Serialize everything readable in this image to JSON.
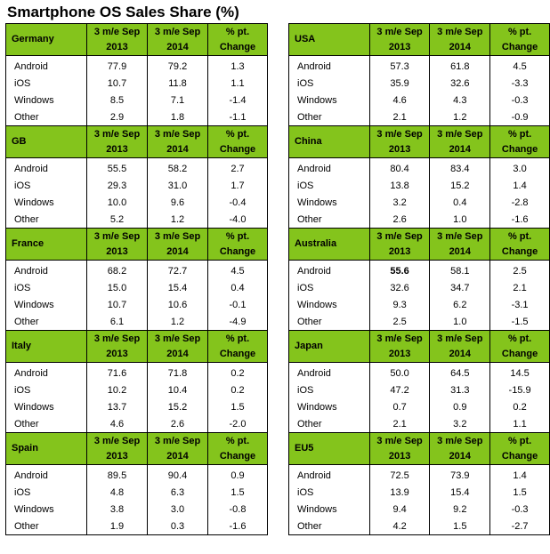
{
  "title": "Smartphone OS Sales Share (%)",
  "chart_data": {
    "type": "table",
    "columns": [
      "3 m/e Sep 2013",
      "3 m/e Sep 2014",
      "% pt. Change"
    ],
    "header_lines": [
      [
        "3 m/e Sep",
        "2013"
      ],
      [
        "3 m/e Sep",
        "2014"
      ],
      [
        "% pt.",
        "Change"
      ]
    ],
    "header_color": "#84c41c",
    "left_regions": [
      {
        "region": "Germany",
        "rows": [
          {
            "os": "Android",
            "v2013": "77.9",
            "v2014": "79.2",
            "change": "1.3"
          },
          {
            "os": "iOS",
            "v2013": "10.7",
            "v2014": "11.8",
            "change": "1.1"
          },
          {
            "os": "Windows",
            "v2013": "8.5",
            "v2014": "7.1",
            "change": "-1.4"
          },
          {
            "os": "Other",
            "v2013": "2.9",
            "v2014": "1.8",
            "change": "-1.1"
          }
        ]
      },
      {
        "region": "GB",
        "rows": [
          {
            "os": "Android",
            "v2013": "55.5",
            "v2014": "58.2",
            "change": "2.7"
          },
          {
            "os": "iOS",
            "v2013": "29.3",
            "v2014": "31.0",
            "change": "1.7"
          },
          {
            "os": "Windows",
            "v2013": "10.0",
            "v2014": "9.6",
            "change": "-0.4"
          },
          {
            "os": "Other",
            "v2013": "5.2",
            "v2014": "1.2",
            "change": "-4.0"
          }
        ]
      },
      {
        "region": "France",
        "rows": [
          {
            "os": "Android",
            "v2013": "68.2",
            "v2014": "72.7",
            "change": "4.5"
          },
          {
            "os": "iOS",
            "v2013": "15.0",
            "v2014": "15.4",
            "change": "0.4"
          },
          {
            "os": "Windows",
            "v2013": "10.7",
            "v2014": "10.6",
            "change": "-0.1"
          },
          {
            "os": "Other",
            "v2013": "6.1",
            "v2014": "1.2",
            "change": "-4.9"
          }
        ]
      },
      {
        "region": "Italy",
        "rows": [
          {
            "os": "Android",
            "v2013": "71.6",
            "v2014": "71.8",
            "change": "0.2"
          },
          {
            "os": "iOS",
            "v2013": "10.2",
            "v2014": "10.4",
            "change": "0.2"
          },
          {
            "os": "Windows",
            "v2013": "13.7",
            "v2014": "15.2",
            "change": "1.5"
          },
          {
            "os": "Other",
            "v2013": "4.6",
            "v2014": "2.6",
            "change": "-2.0"
          }
        ]
      },
      {
        "region": "Spain",
        "rows": [
          {
            "os": "Android",
            "v2013": "89.5",
            "v2014": "90.4",
            "change": "0.9"
          },
          {
            "os": "iOS",
            "v2013": "4.8",
            "v2014": "6.3",
            "change": "1.5"
          },
          {
            "os": "Windows",
            "v2013": "3.8",
            "v2014": "3.0",
            "change": "-0.8"
          },
          {
            "os": "Other",
            "v2013": "1.9",
            "v2014": "0.3",
            "change": "-1.6"
          }
        ]
      }
    ],
    "right_regions": [
      {
        "region": "USA",
        "rows": [
          {
            "os": "Android",
            "v2013": "57.3",
            "v2014": "61.8",
            "change": "4.5"
          },
          {
            "os": "iOS",
            "v2013": "35.9",
            "v2014": "32.6",
            "change": "-3.3"
          },
          {
            "os": "Windows",
            "v2013": "4.6",
            "v2014": "4.3",
            "change": "-0.3"
          },
          {
            "os": "Other",
            "v2013": "2.1",
            "v2014": "1.2",
            "change": "-0.9"
          }
        ]
      },
      {
        "region": "China",
        "rows": [
          {
            "os": "Android",
            "v2013": "80.4",
            "v2014": "83.4",
            "change": "3.0"
          },
          {
            "os": "iOS",
            "v2013": "13.8",
            "v2014": "15.2",
            "change": "1.4"
          },
          {
            "os": "Windows",
            "v2013": "3.2",
            "v2014": "0.4",
            "change": "-2.8"
          },
          {
            "os": "Other",
            "v2013": "2.6",
            "v2014": "1.0",
            "change": "-1.6"
          }
        ]
      },
      {
        "region": "Australia",
        "rows": [
          {
            "os": "Android",
            "v2013": "55.6",
            "v2014": "58.1",
            "change": "2.5",
            "bold2013": true
          },
          {
            "os": "iOS",
            "v2013": "32.6",
            "v2014": "34.7",
            "change": "2.1"
          },
          {
            "os": "Windows",
            "v2013": "9.3",
            "v2014": "6.2",
            "change": "-3.1"
          },
          {
            "os": "Other",
            "v2013": "2.5",
            "v2014": "1.0",
            "change": "-1.5"
          }
        ]
      },
      {
        "region": "Japan",
        "rows": [
          {
            "os": "Android",
            "v2013": "50.0",
            "v2014": "64.5",
            "change": "14.5"
          },
          {
            "os": "iOS",
            "v2013": "47.2",
            "v2014": "31.3",
            "change": "-15.9"
          },
          {
            "os": "Windows",
            "v2013": "0.7",
            "v2014": "0.9",
            "change": "0.2"
          },
          {
            "os": "Other",
            "v2013": "2.1",
            "v2014": "3.2",
            "change": "1.1"
          }
        ]
      },
      {
        "region": "EU5",
        "rows": [
          {
            "os": "Android",
            "v2013": "72.5",
            "v2014": "73.9",
            "change": "1.4"
          },
          {
            "os": "iOS",
            "v2013": "13.9",
            "v2014": "15.4",
            "change": "1.5"
          },
          {
            "os": "Windows",
            "v2013": "9.4",
            "v2014": "9.2",
            "change": "-0.3"
          },
          {
            "os": "Other",
            "v2013": "4.2",
            "v2014": "1.5",
            "change": "-2.7"
          }
        ]
      }
    ]
  }
}
